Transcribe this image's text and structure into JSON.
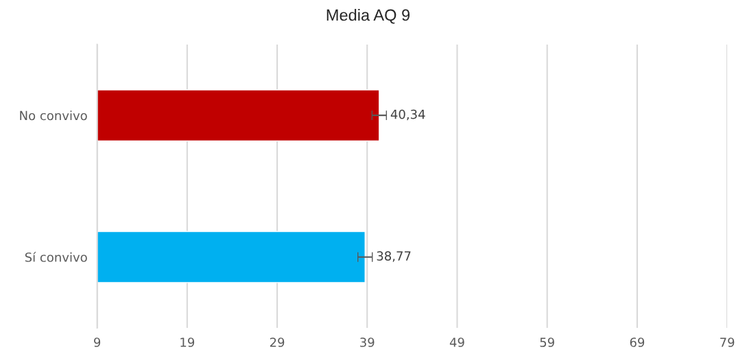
{
  "chart_data": {
    "type": "bar",
    "orientation": "horizontal",
    "title": "Media AQ 9",
    "categories": [
      "No convivo",
      "Sí convivo"
    ],
    "values": [
      40.34,
      38.77
    ],
    "colors": [
      "#c00000",
      "#00b0f0"
    ],
    "errors": [
      0.8,
      0.8
    ],
    "value_labels": [
      "40,34",
      "38,77"
    ],
    "xlim": [
      9,
      79
    ],
    "xticks": [
      9,
      19,
      29,
      39,
      49,
      59,
      69,
      79
    ],
    "grid": "x",
    "legend": false
  }
}
